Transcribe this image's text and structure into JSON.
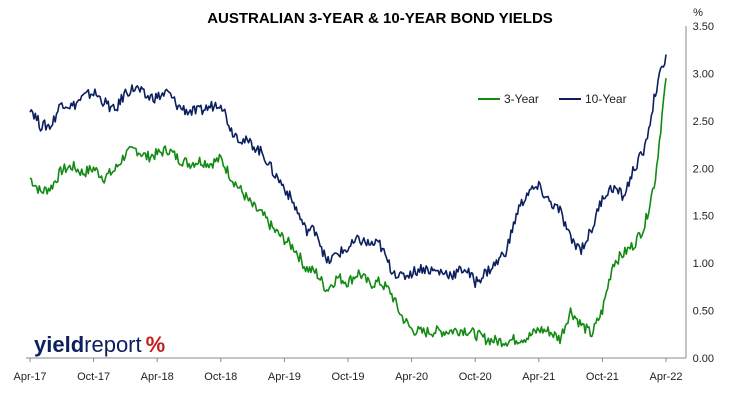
{
  "chart_data": {
    "type": "line",
    "title": "AUSTRALIAN 3-YEAR & 10-YEAR BOND YIELDS",
    "y_unit": "%",
    "ylim": [
      0,
      3.5
    ],
    "y_ticks": [
      "0.00",
      "0.50",
      "1.00",
      "1.50",
      "2.00",
      "2.50",
      "3.00",
      "3.50"
    ],
    "x_tick_labels": [
      "Apr-17",
      "Oct-17",
      "Apr-18",
      "Oct-18",
      "Apr-19",
      "Oct-19",
      "Apr-20",
      "Oct-20",
      "Apr-21",
      "Oct-21",
      "Apr-22"
    ],
    "legend_position": "top-right",
    "grid": false,
    "series": [
      {
        "name": "3-Year",
        "color": "#138a13",
        "x": [
          "Apr-17",
          "May-17",
          "Jun-17",
          "Jul-17",
          "Aug-17",
          "Sep-17",
          "Oct-17",
          "Nov-17",
          "Dec-17",
          "Jan-18",
          "Feb-18",
          "Mar-18",
          "Apr-18",
          "May-18",
          "Jun-18",
          "Jul-18",
          "Aug-18",
          "Sep-18",
          "Oct-18",
          "Nov-18",
          "Dec-18",
          "Jan-19",
          "Feb-19",
          "Mar-19",
          "Apr-19",
          "May-19",
          "Jun-19",
          "Jul-19",
          "Aug-19",
          "Sep-19",
          "Oct-19",
          "Nov-19",
          "Dec-19",
          "Jan-20",
          "Feb-20",
          "Mar-20",
          "Apr-20",
          "May-20",
          "Jun-20",
          "Jul-20",
          "Aug-20",
          "Sep-20",
          "Oct-20",
          "Nov-20",
          "Dec-20",
          "Jan-21",
          "Feb-21",
          "Mar-21",
          "Apr-21",
          "May-21",
          "Jun-21",
          "Jul-21",
          "Aug-21",
          "Sep-21",
          "Oct-21",
          "Nov-21",
          "Dec-21",
          "Jan-22",
          "Feb-22",
          "Mar-22",
          "Apr-22"
        ],
        "values": [
          1.9,
          1.75,
          1.8,
          1.98,
          2.02,
          1.95,
          2.0,
          1.9,
          1.98,
          2.15,
          2.2,
          2.12,
          2.15,
          2.2,
          2.1,
          2.05,
          2.08,
          2.05,
          2.1,
          1.9,
          1.75,
          1.6,
          1.5,
          1.35,
          1.25,
          1.15,
          0.95,
          0.9,
          0.72,
          0.85,
          0.8,
          0.9,
          0.78,
          0.8,
          0.7,
          0.45,
          0.3,
          0.27,
          0.28,
          0.28,
          0.29,
          0.3,
          0.25,
          0.2,
          0.18,
          0.18,
          0.2,
          0.22,
          0.3,
          0.28,
          0.2,
          0.5,
          0.35,
          0.25,
          0.5,
          1.0,
          1.1,
          1.2,
          1.4,
          1.9,
          2.95
        ]
      },
      {
        "name": "10-Year",
        "color": "#0c1f5e",
        "x": [
          "Apr-17",
          "May-17",
          "Jun-17",
          "Jul-17",
          "Aug-17",
          "Sep-17",
          "Oct-17",
          "Nov-17",
          "Dec-17",
          "Jan-18",
          "Feb-18",
          "Mar-18",
          "Apr-18",
          "May-18",
          "Jun-18",
          "Jul-18",
          "Aug-18",
          "Sep-18",
          "Oct-18",
          "Nov-18",
          "Dec-18",
          "Jan-19",
          "Feb-19",
          "Mar-19",
          "Apr-19",
          "May-19",
          "Jun-19",
          "Jul-19",
          "Aug-19",
          "Sep-19",
          "Oct-19",
          "Nov-19",
          "Dec-19",
          "Jan-20",
          "Feb-20",
          "Mar-20",
          "Apr-20",
          "May-20",
          "Jun-20",
          "Jul-20",
          "Aug-20",
          "Sep-20",
          "Oct-20",
          "Nov-20",
          "Dec-20",
          "Jan-21",
          "Feb-21",
          "Mar-21",
          "Apr-21",
          "May-21",
          "Jun-21",
          "Jul-21",
          "Aug-21",
          "Sep-21",
          "Oct-21",
          "Nov-21",
          "Dec-21",
          "Jan-22",
          "Feb-22",
          "Mar-22",
          "Apr-22"
        ],
        "values": [
          2.65,
          2.45,
          2.45,
          2.7,
          2.65,
          2.75,
          2.8,
          2.7,
          2.6,
          2.8,
          2.85,
          2.75,
          2.75,
          2.8,
          2.65,
          2.6,
          2.6,
          2.65,
          2.7,
          2.4,
          2.3,
          2.25,
          2.15,
          1.95,
          1.8,
          1.6,
          1.35,
          1.35,
          1.0,
          1.1,
          1.15,
          1.25,
          1.2,
          1.2,
          0.95,
          0.85,
          0.9,
          0.95,
          0.92,
          0.9,
          0.88,
          0.95,
          0.8,
          0.9,
          1.0,
          1.15,
          1.55,
          1.75,
          1.8,
          1.65,
          1.55,
          1.25,
          1.15,
          1.35,
          1.7,
          1.8,
          1.7,
          2.0,
          2.2,
          2.8,
          3.2
        ]
      }
    ]
  },
  "logo": {
    "part1": "yield",
    "part2": "report",
    "symbol": "%"
  }
}
